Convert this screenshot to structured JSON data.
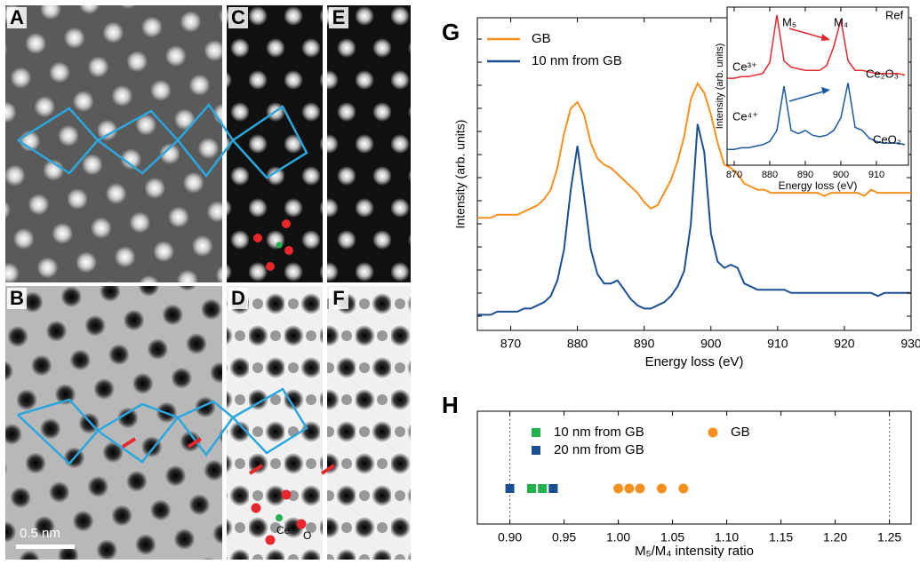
{
  "panels": {
    "labels": [
      "A",
      "B",
      "C",
      "D",
      "E",
      "F"
    ],
    "scale_bar": "0.5 nm",
    "atom_labels": [
      "Ce",
      "O"
    ]
  },
  "chart_data": [
    {
      "type": "line",
      "panel_label": "G",
      "xlabel": "Energy loss (eV)",
      "ylabel": "Intensity (arb. units)",
      "xlim": [
        865,
        930
      ],
      "xticks": [
        870,
        880,
        890,
        900,
        910,
        920,
        930
      ],
      "ylim": [
        0,
        100
      ],
      "legend": "upper left",
      "x": [
        865,
        866,
        867,
        868,
        869,
        870,
        871,
        872,
        873,
        874,
        875,
        876,
        877,
        878,
        879,
        880,
        881,
        882,
        883,
        884,
        885,
        886,
        887,
        888,
        889,
        890,
        891,
        892,
        893,
        894,
        895,
        896,
        897,
        898,
        899,
        900,
        901,
        902,
        903,
        904,
        905,
        906,
        907,
        908,
        909,
        910,
        911,
        912,
        913,
        914,
        915,
        916,
        917,
        918,
        919,
        920,
        921,
        922,
        923,
        924,
        925,
        926,
        927,
        928,
        929,
        930
      ],
      "series": [
        {
          "name": "GB",
          "color": "#f7901e",
          "values": [
            36,
            36,
            36,
            37,
            37,
            37,
            37,
            38,
            39,
            40,
            42,
            45,
            52,
            63,
            71,
            73,
            69,
            60,
            55,
            53,
            52,
            50,
            48,
            46,
            44,
            41,
            39,
            40,
            44,
            48,
            54,
            62,
            74,
            79,
            76,
            69,
            60,
            53,
            52,
            50,
            47,
            46,
            45,
            45,
            44,
            44,
            44,
            44,
            44,
            44,
            44,
            44,
            43,
            44,
            44,
            44,
            44,
            44,
            43,
            45,
            44,
            44,
            44,
            44,
            44,
            44
          ]
        },
        {
          "name": "10 nm from GB",
          "color": "#1b4f93",
          "values": [
            5,
            5,
            5,
            6,
            6,
            6,
            6,
            7,
            7,
            8,
            9,
            11,
            16,
            26,
            45,
            59,
            43,
            26,
            18,
            15,
            15,
            16,
            13,
            10,
            8,
            7,
            7,
            8,
            9,
            11,
            14,
            19,
            34,
            66,
            57,
            31,
            22,
            20,
            21,
            20,
            15,
            14,
            13,
            13,
            13,
            13,
            13,
            12,
            12,
            12,
            12,
            12,
            12,
            12,
            12,
            12,
            12,
            12,
            12,
            12,
            11,
            12,
            12,
            12,
            12,
            12
          ]
        }
      ]
    },
    {
      "type": "line",
      "xlabel": "Energy loss (eV)",
      "ylabel": "Intensity  (arb. units)",
      "xlim": [
        868,
        919
      ],
      "xticks": [
        870,
        880,
        890,
        900,
        910
      ],
      "ylim": [
        0,
        100
      ],
      "annotations": [
        "Ref",
        "M₅",
        "M₄",
        "Ce³⁺",
        "Ce⁴⁺",
        "Ce₂O₃",
        "CeO₂"
      ],
      "x": [
        868,
        870,
        872,
        874,
        876,
        878,
        880,
        882,
        884,
        886,
        888,
        890,
        892,
        894,
        896,
        898,
        900,
        902,
        904,
        906,
        908,
        910,
        912,
        914,
        916,
        918
      ],
      "series": [
        {
          "color": "#e8262b",
          "values": [
            55,
            55,
            56,
            56,
            57,
            58,
            65,
            95,
            66,
            62,
            61,
            60,
            60,
            60,
            63,
            75,
            92,
            66,
            60,
            60,
            59,
            58,
            58,
            58,
            58,
            57
          ]
        },
        {
          "color": "#1b5aa0",
          "values": [
            10,
            10,
            11,
            11,
            12,
            13,
            15,
            22,
            50,
            22,
            20,
            22,
            19,
            18,
            19,
            22,
            30,
            52,
            24,
            22,
            17,
            15,
            14,
            14,
            14,
            13
          ]
        }
      ]
    },
    {
      "type": "scatter",
      "panel_label": "H",
      "xlabel": "M₅/M₄ intensity ratio",
      "xlim": [
        0.87,
        1.27
      ],
      "xticks": [
        {
          "value": 0.9,
          "label": "0.90"
        },
        {
          "value": 0.95,
          "label": "0.95"
        },
        {
          "value": 1.0,
          "label": "1.00"
        },
        {
          "value": 1.05,
          "label": "1.05"
        },
        {
          "value": 1.1,
          "label": "1.10"
        },
        {
          "value": 1.15,
          "label": "1.15"
        },
        {
          "value": 1.2,
          "label": "1.20"
        },
        {
          "value": 1.25,
          "label": "1.25"
        }
      ],
      "vlines": [
        0.9,
        1.25
      ],
      "series": [
        {
          "name": "10 nm from GB",
          "color": "#22b24c",
          "marker": "square",
          "values": [
            0.92,
            0.93,
            0.94
          ]
        },
        {
          "name": "20 nm from GB",
          "color": "#1b4f93",
          "marker": "square",
          "values": [
            0.9,
            0.94
          ]
        },
        {
          "name": "GB",
          "color": "#f7901e",
          "marker": "circle",
          "values": [
            1.0,
            1.01,
            1.02,
            1.04,
            1.06
          ]
        }
      ]
    }
  ]
}
